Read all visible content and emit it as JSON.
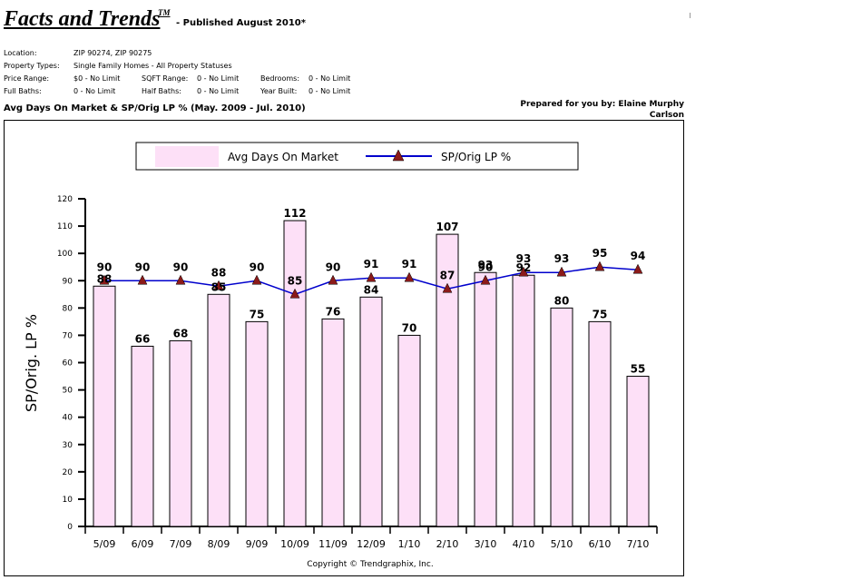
{
  "header": {
    "title": "Facts and Trends",
    "tm": "TM",
    "published": "- Published August 2010*"
  },
  "criteria": {
    "location_label": "Location:",
    "location_value": "ZIP 90274, ZIP 90275",
    "property_types_label": "Property Types:",
    "property_types_value": "Single Family Homes - All Property Statuses",
    "price_range_label": "Price Range:",
    "price_range_value": "$0 - No Limit",
    "sqft_range_label": "SQFT Range:",
    "sqft_range_value": "0 - No Limit",
    "bedrooms_label": "Bedrooms:",
    "bedrooms_value": "0 - No Limit",
    "full_baths_label": "Full Baths:",
    "full_baths_value": "0 - No Limit",
    "half_baths_label": "Half Baths:",
    "half_baths_value": "0 - No Limit",
    "year_built_label": "Year Built:",
    "year_built_value": "0 - No Limit"
  },
  "chart_heading": "Avg Days On Market & SP/Orig LP % (May. 2009 - Jul. 2010)",
  "prepared_by": {
    "line1": "Prepared for you by: Elaine Murphy",
    "line2": "Carlson"
  },
  "copyright": "Copyright © Trendgraphix, Inc.",
  "colors": {
    "bar_fill": "#fde0f7",
    "line": "#0000cc",
    "marker": "#8b1a1a"
  },
  "chart_data": {
    "type": "bar",
    "title": "",
    "xlabel": "",
    "ylabel": "SP/Orig. LP %",
    "ylim": [
      0,
      120
    ],
    "yticks": [
      0,
      10,
      20,
      30,
      40,
      50,
      60,
      70,
      80,
      90,
      100,
      110,
      120
    ],
    "grid": false,
    "legend_position": "top-center",
    "categories": [
      "5/09",
      "6/09",
      "7/09",
      "8/09",
      "9/09",
      "10/09",
      "11/09",
      "12/09",
      "1/10",
      "2/10",
      "3/10",
      "4/10",
      "5/10",
      "6/10",
      "7/10"
    ],
    "series": [
      {
        "name": "Avg Days On Market",
        "type": "bar",
        "values": [
          88,
          66,
          68,
          85,
          75,
          112,
          76,
          84,
          70,
          107,
          93,
          92,
          80,
          75,
          55
        ]
      },
      {
        "name": "SP/Orig LP %",
        "type": "line",
        "values": [
          90,
          90,
          90,
          88,
          90,
          85,
          90,
          91,
          91,
          87,
          90,
          93,
          93,
          95,
          94
        ]
      }
    ]
  }
}
